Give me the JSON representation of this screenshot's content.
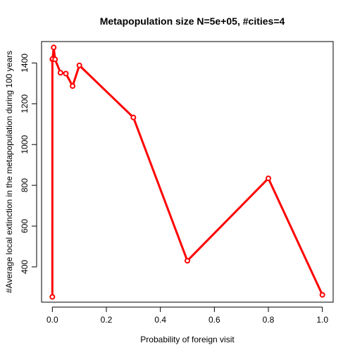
{
  "chart_data": {
    "type": "line",
    "title": "Metapopulation size N=5e+05, #cities=4",
    "xlabel": "Probability of foreign visit",
    "ylabel": "#Average local extinction in the metapopulation during 100 years",
    "xlim": [
      -0.04,
      1.04
    ],
    "ylim": [
      227,
      1505
    ],
    "x_ticks": [
      0.0,
      0.2,
      0.4,
      0.6,
      0.8,
      1.0
    ],
    "x_tick_labels": [
      "0.0",
      "0.2",
      "0.4",
      "0.6",
      "0.8",
      "1.0"
    ],
    "y_ticks": [
      400,
      600,
      800,
      1000,
      1200,
      1400
    ],
    "y_tick_labels": [
      "400",
      "600",
      "800",
      "1000",
      "1200",
      "1400"
    ],
    "grid": false,
    "legend": "none",
    "series": [
      {
        "color": "#ff0000",
        "x": [
          0.0,
          0.0001,
          0.001,
          0.005,
          0.01,
          0.03,
          0.05,
          0.075,
          0.1,
          0.3,
          0.5,
          0.8,
          1.0
        ],
        "y": [
          253,
          1418,
          1420,
          1476,
          1418,
          1352,
          1348,
          1287,
          1388,
          1133,
          430,
          834,
          263
        ]
      }
    ]
  }
}
